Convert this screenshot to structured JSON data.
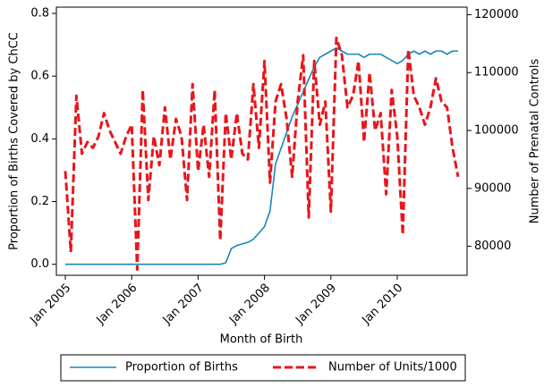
{
  "chart_data": {
    "type": "line",
    "xlabel": "Month of Birth",
    "ylabel": "Proportion of Births Covered by ChCC",
    "y2label": "Number of Prenatal Controls",
    "x": [
      "Jan 2005",
      "Feb 2005",
      "Mar 2005",
      "Apr 2005",
      "May 2005",
      "Jun 2005",
      "Jul 2005",
      "Aug 2005",
      "Sep 2005",
      "Oct 2005",
      "Nov 2005",
      "Dec 2005",
      "Jan 2006",
      "Feb 2006",
      "Mar 2006",
      "Apr 2006",
      "May 2006",
      "Jun 2006",
      "Jul 2006",
      "Aug 2006",
      "Sep 2006",
      "Oct 2006",
      "Nov 2006",
      "Dec 2006",
      "Jan 2007",
      "Feb 2007",
      "Mar 2007",
      "Apr 2007",
      "May 2007",
      "Jun 2007",
      "Jul 2007",
      "Aug 2007",
      "Sep 2007",
      "Oct 2007",
      "Nov 2007",
      "Dec 2007",
      "Jan 2008",
      "Feb 2008",
      "Mar 2008",
      "Apr 2008",
      "May 2008",
      "Jun 2008",
      "Jul 2008",
      "Aug 2008",
      "Sep 2008",
      "Oct 2008",
      "Nov 2008",
      "Dec 2008",
      "Jan 2009",
      "Feb 2009",
      "Mar 2009",
      "Apr 2009",
      "May 2009",
      "Jun 2009",
      "Jul 2009",
      "Aug 2009",
      "Sep 2009",
      "Oct 2009",
      "Nov 2009",
      "Dec 2009",
      "Jan 2010",
      "Feb 2010",
      "Mar 2010",
      "Apr 2010",
      "May 2010",
      "Jun 2010",
      "Jul 2010",
      "Aug 2010",
      "Sep 2010",
      "Oct 2010",
      "Nov 2010",
      "Dec 2010"
    ],
    "xticks": [
      "Jan 2005",
      "Jan 2006",
      "Jan 2007",
      "Jan 2008",
      "Jan 2009",
      "Jan 2010"
    ],
    "ylim": [
      -0.035,
      0.82
    ],
    "yticks": [
      {
        "value": 0,
        "label": "0.0"
      },
      0.2,
      0.4,
      0.6,
      0.8
    ],
    "y2lim": [
      75000,
      121300
    ],
    "y2ticks": [
      80000,
      90000,
      100000,
      110000,
      120000
    ],
    "legend": "bottom",
    "series": [
      {
        "name": "Proportion of Births",
        "color": "#1a86b8",
        "axis": "y",
        "values": [
          0,
          0,
          0,
          0,
          0,
          0,
          0,
          0,
          0,
          0,
          0,
          0,
          0,
          0,
          0,
          0,
          0,
          0,
          0,
          0,
          0,
          0,
          0,
          0,
          0,
          0,
          0,
          0,
          0,
          0.005,
          0.05,
          0.06,
          0.065,
          0.07,
          0.08,
          0.1,
          0.12,
          0.17,
          0.32,
          0.37,
          0.42,
          0.47,
          0.51,
          0.55,
          0.59,
          0.63,
          0.66,
          0.67,
          0.68,
          0.69,
          0.68,
          0.67,
          0.67,
          0.67,
          0.66,
          0.67,
          0.67,
          0.67,
          0.66,
          0.65,
          0.64,
          0.65,
          0.67,
          0.68,
          0.67,
          0.68,
          0.67,
          0.68,
          0.68,
          0.67,
          0.68,
          0.68
        ]
      },
      {
        "name": "Number of Units/1000",
        "color": "#e8161b",
        "axis": "y2",
        "values": [
          93000,
          79000,
          106000,
          96000,
          98000,
          97000,
          99000,
          103000,
          100000,
          98000,
          96000,
          99000,
          101000,
          76000,
          107000,
          88000,
          99000,
          94000,
          104000,
          95000,
          102000,
          99000,
          88000,
          108000,
          93000,
          101000,
          92000,
          107000,
          81000,
          103000,
          95000,
          103000,
          96000,
          95000,
          108000,
          97000,
          112000,
          91000,
          105000,
          108000,
          102000,
          92000,
          105000,
          113000,
          85000,
          112000,
          101000,
          105000,
          86000,
          116000,
          113000,
          104000,
          106000,
          112000,
          98000,
          110000,
          100000,
          103000,
          89000,
          107000,
          99000,
          82000,
          114000,
          106000,
          104000,
          101000,
          104000,
          109000,
          105000,
          104000,
          97000,
          92000
        ]
      }
    ]
  }
}
